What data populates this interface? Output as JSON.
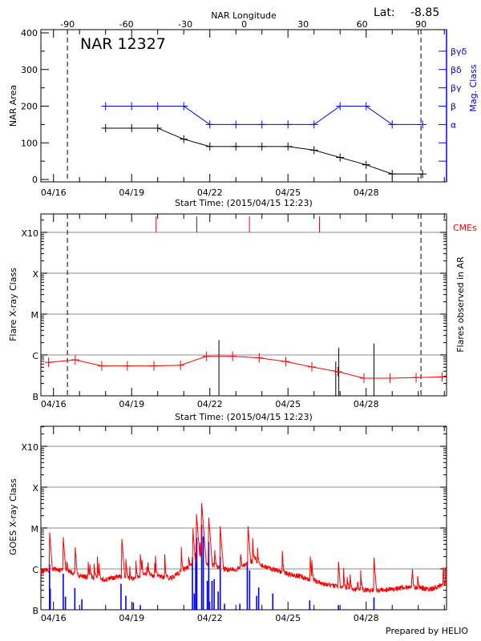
{
  "footer": "Prepared by HELIO",
  "colors": {
    "area": "#000000",
    "mag": "#0000ff",
    "flare": "#ff0000",
    "cme": "#ff0000",
    "goes": "#ff0000",
    "goes_events": "#0000ff",
    "grid": "#a0a0a0"
  },
  "chart_data": [
    {
      "type": "line",
      "title": "NAR 12327",
      "lat_label": "Lat:",
      "lat_value": "-8.85",
      "xlabel": "Start Time: (2015/04/15 12:23)",
      "x_start": "04/15 12:23",
      "x_end": "05/01 02:00",
      "x_tick_labels": [
        "04/16",
        "04/19",
        "04/22",
        "04/25",
        "04/28"
      ],
      "top_axis": {
        "label": "NAR Longitude",
        "tick_labels": [
          "-90",
          "-60",
          "-30",
          "0",
          "30",
          "60",
          "90"
        ],
        "limb_lines": [
          -90,
          90
        ]
      },
      "ylabel": "NAR Area",
      "ylim": [
        0,
        400
      ],
      "y_tick_labels": [
        "0",
        "100",
        "200",
        "300",
        "400"
      ],
      "right_axis": {
        "label": "Mag. Class",
        "tick_labels": [
          "α",
          "β",
          "βγ",
          "βδ",
          "βγδ"
        ]
      },
      "series": [
        {
          "key": "area",
          "x": [
            "04/18 00:00",
            "04/19 00:00",
            "04/20 00:00",
            "04/21 00:00",
            "04/22 00:00",
            "04/23 00:00",
            "04/24 00:00",
            "04/25 00:00",
            "04/26 00:00",
            "04/27 00:00",
            "04/28 00:00",
            "04/29 00:00",
            "04/30 04:00"
          ],
          "values": [
            140,
            140,
            140,
            110,
            90,
            90,
            90,
            90,
            80,
            60,
            40,
            15,
            15
          ]
        },
        {
          "key": "mag_class",
          "x": [
            "04/18 00:00",
            "04/19 00:00",
            "04/20 00:00",
            "04/21 00:00",
            "04/22 00:00",
            "04/23 00:00",
            "04/24 00:00",
            "04/25 00:00",
            "04/26 00:00",
            "04/27 00:00",
            "04/28 00:00",
            "04/29 00:00",
            "04/30 04:00"
          ],
          "values": [
            "β",
            "β",
            "β",
            "β",
            "α",
            "α",
            "α",
            "α",
            "α",
            "β",
            "β",
            "α",
            "α"
          ]
        }
      ]
    },
    {
      "type": "line",
      "xlabel": "Start Time: (2015/04/15 12:23)",
      "x_tick_labels": [
        "04/16",
        "04/19",
        "04/22",
        "04/25",
        "04/28"
      ],
      "ylabel": "Flare X-ray Class",
      "y_scale": "log",
      "y_tick_labels": [
        "B",
        "C",
        "M",
        "X",
        "X10"
      ],
      "right_label": "Flares observed in AR",
      "cme_label": "CMEs",
      "grid": true,
      "background_flux": {
        "x": [
          "04/15 19:30",
          "04/16 20:00",
          "04/17 20:30",
          "04/18 20:00",
          "04/19 20:30",
          "04/20 21:00",
          "04/21 21:00",
          "04/22 21:00",
          "04/23 21:30",
          "04/24 22:00",
          "04/25 22:00",
          "04/26 22:00",
          "04/27 22:00",
          "04/28 22:00",
          "04/29 22:00",
          "04/30 22:00"
        ],
        "values": [
          "B6.6",
          "B7.6",
          "B5.4",
          "B5.4",
          "B5.4",
          "B5.6",
          "B9.3",
          "B9.3",
          "B8.5",
          "B6.9",
          "B5.1",
          "B3.9",
          "B2.7",
          "B2.7",
          "B2.8",
          "B2.9"
        ]
      },
      "flares": [
        {
          "time": "04/22 08:24",
          "class": "C2.3"
        },
        {
          "time": "04/26 20:00",
          "class": "B6.9"
        },
        {
          "time": "04/26 22:48",
          "class": "C1.5"
        },
        {
          "time": "04/28 07:12",
          "class": "C1.9"
        }
      ],
      "cmes": [
        "04/19 22:30",
        "04/21 12:00",
        "04/23 12:30",
        "04/26 05:00"
      ]
    },
    {
      "type": "line",
      "x_tick_labels": [
        "04/16",
        "04/19",
        "04/22",
        "04/25",
        "04/28"
      ],
      "ylabel": "GOES X-ray Class",
      "y_scale": "log",
      "y_tick_labels": [
        "B",
        "C",
        "M",
        "X",
        "X10"
      ],
      "grid": true,
      "goes_flux_baseline": {
        "x": [
          "04/15 12:30",
          "04/16 00:00",
          "04/16 12:00",
          "04/17 00:00",
          "04/17 12:00",
          "04/18 00:00",
          "04/18 12:00",
          "04/19 00:00",
          "04/19 12:00",
          "04/20 00:00",
          "04/20 12:00",
          "04/21 00:00",
          "04/21 12:00",
          "04/22 00:00",
          "04/22 12:00",
          "04/23 00:00",
          "04/23 18:00",
          "04/24 00:00",
          "04/24 12:00",
          "04/25 00:00",
          "04/25 12:00",
          "04/26 00:00",
          "04/26 12:00",
          "04/27 00:00",
          "04/27 12:00",
          "04/28 00:00",
          "04/28 12:00",
          "04/29 00:00",
          "04/29 12:00",
          "04/30 00:00",
          "04/30 12:00",
          "05/01 02:00"
        ],
        "values": [
          "B8.5",
          "C1.0",
          "B9.0",
          "B6.9",
          "B6.0",
          "B5.4",
          "B6.5",
          "B5.6",
          "B7.0",
          "B6.5",
          "B6.0",
          "B9.3",
          "C1.5",
          "C1.3",
          "C1.0",
          "B9.5",
          "C1.7",
          "C1.2",
          "B9.5",
          "B7.5",
          "B6.5",
          "B5.1",
          "B4.1",
          "B3.5",
          "B3.2",
          "B3.0",
          "B3.0",
          "B3.2",
          "B3.5",
          "B3.4",
          "B3.2",
          "B4.5"
        ]
      },
      "goes_peaks": [
        {
          "time": "04/15 20:24",
          "class": "C7.8"
        },
        {
          "time": "04/16 09:00",
          "class": "C6.0"
        },
        {
          "time": "04/16 20:00",
          "class": "C3.4"
        },
        {
          "time": "04/18 15:00",
          "class": "C5.4"
        },
        {
          "time": "04/19 08:00",
          "class": "C2.3"
        },
        {
          "time": "04/21 08:24",
          "class": "C9.8"
        },
        {
          "time": "04/21 11:45",
          "class": "M2.2"
        },
        {
          "time": "04/21 16:30",
          "class": "M4.1"
        },
        {
          "time": "04/21 23:00",
          "class": "M1.8"
        },
        {
          "time": "04/22 09:36",
          "class": "M1.1"
        },
        {
          "time": "04/23 11:15",
          "class": "M1.1"
        },
        {
          "time": "04/25 20:24",
          "class": "C2.0"
        },
        {
          "time": "04/26 22:30",
          "class": "C1.5"
        },
        {
          "time": "04/28 07:12",
          "class": "C1.9"
        },
        {
          "time": "04/29 18:30",
          "class": "C1.0"
        },
        {
          "time": "04/30 23:00",
          "class": "C1.1"
        }
      ],
      "events": [
        {
          "time": "04/15 20:24",
          "class": "C1.3"
        },
        {
          "time": "04/15 21:00",
          "class": "B3.3"
        },
        {
          "time": "04/16 09:00",
          "class": "B7.6"
        },
        {
          "time": "04/16 11:00",
          "class": "B2.1"
        },
        {
          "time": "04/16 19:40",
          "class": "B3.4"
        },
        {
          "time": "04/17 02:10",
          "class": "B1.8"
        },
        {
          "time": "04/18 14:10",
          "class": "B4.3"
        },
        {
          "time": "04/18 18:40",
          "class": "B2.2"
        },
        {
          "time": "04/19 01:30",
          "class": "B1.5"
        },
        {
          "time": "04/19 08:00",
          "class": "B1.3"
        },
        {
          "time": "04/21 08:00",
          "class": "C1.9"
        },
        {
          "time": "04/21 09:40",
          "class": "B2.5"
        },
        {
          "time": "04/21 11:00",
          "class": "C2.5"
        },
        {
          "time": "04/21 12:00",
          "class": "C5.8"
        },
        {
          "time": "04/21 16:30",
          "class": "M1.2"
        },
        {
          "time": "04/21 18:00",
          "class": "C6.2"
        },
        {
          "time": "04/21 21:40",
          "class": "B5.1"
        },
        {
          "time": "04/21 23:00",
          "class": "C4.6"
        },
        {
          "time": "04/22 02:00",
          "class": "B5.1"
        },
        {
          "time": "04/22 04:00",
          "class": "B5.6"
        },
        {
          "time": "04/22 07:40",
          "class": "B2.8"
        },
        {
          "time": "04/22 09:36",
          "class": "C2.0"
        },
        {
          "time": "04/22 13:30",
          "class": "B1.4"
        },
        {
          "time": "04/23 03:40",
          "class": "B1.4"
        },
        {
          "time": "04/23 10:30",
          "class": "C1.5"
        },
        {
          "time": "04/23 12:40",
          "class": "B9.3"
        },
        {
          "time": "04/23 19:10",
          "class": "B2.2"
        },
        {
          "time": "04/23 21:00",
          "class": "B3.5"
        },
        {
          "time": "04/24 10:00",
          "class": "B2.5"
        },
        {
          "time": "04/25 20:00",
          "class": "B1.7"
        },
        {
          "time": "04/26 22:30",
          "class": "B1.3"
        },
        {
          "time": "04/28 07:12",
          "class": "B2.0"
        }
      ]
    }
  ]
}
